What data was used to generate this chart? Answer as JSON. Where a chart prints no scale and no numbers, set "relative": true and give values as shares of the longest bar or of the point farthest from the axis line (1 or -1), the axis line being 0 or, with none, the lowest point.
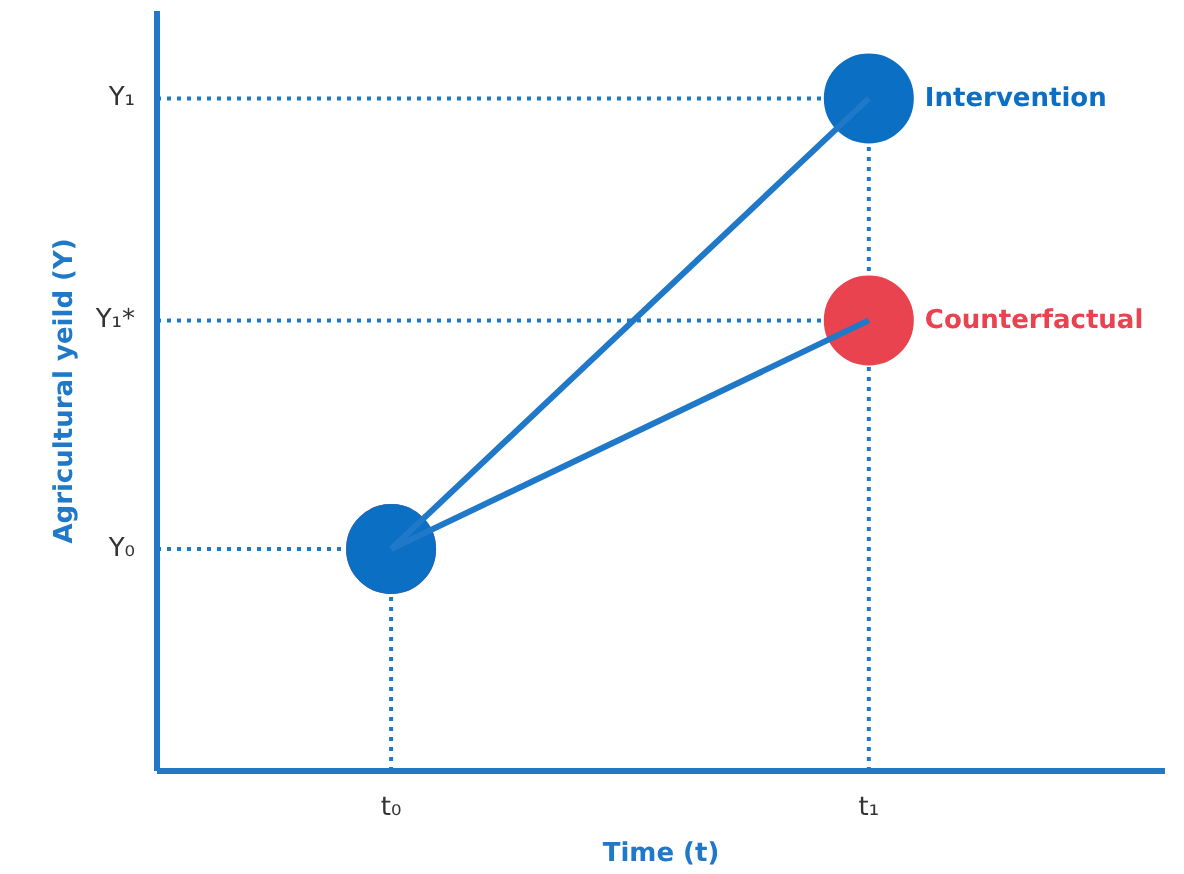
{
  "chart_data": {
    "type": "line",
    "relative": true,
    "xlabel": "Time (t)",
    "ylabel": "Agricultural yeild (Y)",
    "categories": [
      "t₀",
      "t₁"
    ],
    "series": [
      {
        "name": "Intervention",
        "color": "#0b6fc4",
        "values": [
          0.33,
          1
        ]
      },
      {
        "name": "Counterfactual",
        "color": "#e8434f",
        "values": [
          0.33,
          0.67
        ]
      }
    ],
    "ref_lines": [
      {
        "axis": "y",
        "value": 0.33,
        "label": "Y₀",
        "line_style": "dotted",
        "color": "#1f78c8"
      },
      {
        "axis": "y",
        "value": 0.67,
        "label": "Y₁*",
        "line_style": "dotted",
        "color": "#1f78c8"
      },
      {
        "axis": "y",
        "value": 1,
        "label": "Y₁",
        "line_style": "dotted",
        "color": "#1f78c8"
      },
      {
        "axis": "x",
        "value": "t₀",
        "label": null,
        "line_style": "dotted",
        "color": "#1f78c8"
      },
      {
        "axis": "x",
        "value": "t₁",
        "label": null,
        "line_style": "dotted",
        "color": "#1f78c8"
      }
    ],
    "marker": "circle",
    "line_style": "solid",
    "grid": false,
    "legend": false
  }
}
